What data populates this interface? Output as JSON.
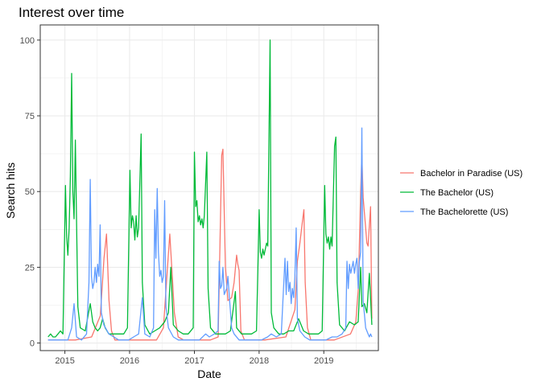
{
  "chart_data": {
    "type": "line",
    "title": "Interest over time",
    "xlabel": "Date",
    "ylabel": "Search hits",
    "xlim": [
      "2014-08-15",
      "2019-11-05"
    ],
    "ylim": [
      -2.5,
      105
    ],
    "x_ticks": [
      {
        "date": "2015-01-01",
        "label": "2015"
      },
      {
        "date": "2016-01-01",
        "label": "2016"
      },
      {
        "date": "2017-01-01",
        "label": "2017"
      },
      {
        "date": "2018-01-01",
        "label": "2018"
      },
      {
        "date": "2019-01-01",
        "label": "2019"
      }
    ],
    "y_ticks": [
      0,
      25,
      50,
      75,
      100
    ],
    "grid": true,
    "legend_position": "right",
    "series": [
      {
        "name": "Bachelor in Paradise (US)",
        "color": "#F8766D",
        "points": [
          [
            "2014-09-28",
            1
          ],
          [
            "2015-03-01",
            1
          ],
          [
            "2015-06-01",
            2
          ],
          [
            "2015-07-20",
            9
          ],
          [
            "2015-08-10",
            28
          ],
          [
            "2015-08-24",
            36
          ],
          [
            "2015-09-07",
            14
          ],
          [
            "2015-09-21",
            4
          ],
          [
            "2015-10-10",
            1
          ],
          [
            "2016-03-01",
            1
          ],
          [
            "2016-06-01",
            1
          ],
          [
            "2016-07-10",
            5
          ],
          [
            "2016-08-01",
            24
          ],
          [
            "2016-08-15",
            36
          ],
          [
            "2016-08-29",
            22
          ],
          [
            "2016-09-10",
            10
          ],
          [
            "2016-10-01",
            2
          ],
          [
            "2016-11-01",
            1
          ],
          [
            "2017-04-01",
            1
          ],
          [
            "2017-05-15",
            2
          ],
          [
            "2017-06-04",
            62
          ],
          [
            "2017-06-11",
            64
          ],
          [
            "2017-06-25",
            25
          ],
          [
            "2017-07-09",
            14
          ],
          [
            "2017-07-30",
            15
          ],
          [
            "2017-08-13",
            20
          ],
          [
            "2017-08-27",
            29
          ],
          [
            "2017-09-03",
            26
          ],
          [
            "2017-09-10",
            24
          ],
          [
            "2017-09-20",
            4
          ],
          [
            "2017-10-10",
            1
          ],
          [
            "2018-02-01",
            1
          ],
          [
            "2018-06-01",
            2
          ],
          [
            "2018-07-22",
            11
          ],
          [
            "2018-08-05",
            27
          ],
          [
            "2018-08-19",
            33
          ],
          [
            "2018-09-02",
            40
          ],
          [
            "2018-09-11",
            44
          ],
          [
            "2018-09-18",
            20
          ],
          [
            "2018-10-01",
            5
          ],
          [
            "2018-10-20",
            1
          ],
          [
            "2019-03-01",
            1
          ],
          [
            "2019-06-01",
            3
          ],
          [
            "2019-07-01",
            7
          ],
          [
            "2019-07-15",
            18
          ],
          [
            "2019-07-28",
            50
          ],
          [
            "2019-08-04",
            62
          ],
          [
            "2019-08-11",
            48
          ],
          [
            "2019-08-25",
            38
          ],
          [
            "2019-09-01",
            33
          ],
          [
            "2019-09-08",
            32
          ],
          [
            "2019-09-22",
            45
          ],
          [
            "2019-09-29",
            8
          ]
        ]
      },
      {
        "name": "The Bachelor (US)",
        "color": "#00BA38",
        "points": [
          [
            "2014-09-28",
            2
          ],
          [
            "2014-10-12",
            3
          ],
          [
            "2014-10-26",
            2
          ],
          [
            "2014-11-09",
            2
          ],
          [
            "2014-11-23",
            3
          ],
          [
            "2014-12-07",
            4
          ],
          [
            "2014-12-21",
            3
          ],
          [
            "2015-01-04",
            52
          ],
          [
            "2015-01-11",
            35
          ],
          [
            "2015-01-18",
            29
          ],
          [
            "2015-01-25",
            38
          ],
          [
            "2015-02-01",
            55
          ],
          [
            "2015-02-08",
            89
          ],
          [
            "2015-02-15",
            50
          ],
          [
            "2015-02-22",
            41
          ],
          [
            "2015-03-01",
            67
          ],
          [
            "2015-03-08",
            40
          ],
          [
            "2015-03-15",
            12
          ],
          [
            "2015-03-29",
            5
          ],
          [
            "2015-04-26",
            4
          ],
          [
            "2015-05-24",
            13
          ],
          [
            "2015-06-07",
            7
          ],
          [
            "2015-06-21",
            5
          ],
          [
            "2015-07-05",
            4
          ],
          [
            "2015-07-19",
            5
          ],
          [
            "2015-08-02",
            8
          ],
          [
            "2015-08-16",
            5
          ],
          [
            "2015-09-06",
            3
          ],
          [
            "2015-10-04",
            3
          ],
          [
            "2015-11-01",
            3
          ],
          [
            "2015-11-29",
            3
          ],
          [
            "2015-12-20",
            5
          ],
          [
            "2016-01-03",
            57
          ],
          [
            "2016-01-10",
            38
          ],
          [
            "2016-01-17",
            42
          ],
          [
            "2016-01-24",
            40
          ],
          [
            "2016-01-31",
            34
          ],
          [
            "2016-02-07",
            42
          ],
          [
            "2016-02-14",
            35
          ],
          [
            "2016-02-21",
            38
          ],
          [
            "2016-03-06",
            69
          ],
          [
            "2016-03-13",
            20
          ],
          [
            "2016-03-27",
            6
          ],
          [
            "2016-04-24",
            3
          ],
          [
            "2016-05-22",
            4
          ],
          [
            "2016-06-19",
            5
          ],
          [
            "2016-07-17",
            7
          ],
          [
            "2016-08-07",
            10
          ],
          [
            "2016-08-21",
            25
          ],
          [
            "2016-09-04",
            6
          ],
          [
            "2016-10-02",
            4
          ],
          [
            "2016-10-30",
            3
          ],
          [
            "2016-11-27",
            3
          ],
          [
            "2016-12-25",
            5
          ],
          [
            "2017-01-01",
            63
          ],
          [
            "2017-01-08",
            45
          ],
          [
            "2017-01-15",
            47
          ],
          [
            "2017-01-22",
            40
          ],
          [
            "2017-01-29",
            42
          ],
          [
            "2017-02-05",
            39
          ],
          [
            "2017-02-12",
            41
          ],
          [
            "2017-02-19",
            38
          ],
          [
            "2017-02-26",
            42
          ],
          [
            "2017-03-12",
            63
          ],
          [
            "2017-03-19",
            18
          ],
          [
            "2017-04-02",
            5
          ],
          [
            "2017-04-30",
            3
          ],
          [
            "2017-05-28",
            3
          ],
          [
            "2017-06-25",
            3
          ],
          [
            "2017-07-23",
            4
          ],
          [
            "2017-08-20",
            17
          ],
          [
            "2017-08-27",
            5
          ],
          [
            "2017-09-24",
            3
          ],
          [
            "2017-10-22",
            3
          ],
          [
            "2017-11-19",
            3
          ],
          [
            "2017-12-17",
            4
          ],
          [
            "2018-01-01",
            44
          ],
          [
            "2018-01-08",
            30
          ],
          [
            "2018-01-15",
            28
          ],
          [
            "2018-01-22",
            31
          ],
          [
            "2018-01-29",
            29
          ],
          [
            "2018-02-05",
            31
          ],
          [
            "2018-02-12",
            33
          ],
          [
            "2018-02-19",
            32
          ],
          [
            "2018-03-04",
            100
          ],
          [
            "2018-03-11",
            10
          ],
          [
            "2018-03-25",
            5
          ],
          [
            "2018-04-22",
            3
          ],
          [
            "2018-05-20",
            3
          ],
          [
            "2018-06-17",
            4
          ],
          [
            "2018-07-15",
            4
          ],
          [
            "2018-08-12",
            8
          ],
          [
            "2018-09-09",
            4
          ],
          [
            "2018-10-07",
            3
          ],
          [
            "2018-11-04",
            3
          ],
          [
            "2018-12-02",
            3
          ],
          [
            "2018-12-23",
            4
          ],
          [
            "2019-01-06",
            52
          ],
          [
            "2019-01-13",
            36
          ],
          [
            "2019-01-20",
            33
          ],
          [
            "2019-01-27",
            35
          ],
          [
            "2019-02-03",
            31
          ],
          [
            "2019-02-10",
            35
          ],
          [
            "2019-02-17",
            32
          ],
          [
            "2019-03-03",
            65
          ],
          [
            "2019-03-10",
            68
          ],
          [
            "2019-03-17",
            20
          ],
          [
            "2019-03-31",
            6
          ],
          [
            "2019-04-28",
            4
          ],
          [
            "2019-05-26",
            7
          ],
          [
            "2019-06-23",
            6
          ],
          [
            "2019-07-14",
            7
          ],
          [
            "2019-07-28",
            25
          ],
          [
            "2019-08-04",
            12
          ],
          [
            "2019-08-18",
            13
          ],
          [
            "2019-09-01",
            10
          ],
          [
            "2019-09-15",
            23
          ],
          [
            "2019-09-29",
            6
          ]
        ]
      },
      {
        "name": "The Bachelorette (US)",
        "color": "#619CFF",
        "points": [
          [
            "2014-09-28",
            1
          ],
          [
            "2014-11-09",
            1
          ],
          [
            "2014-12-21",
            1
          ],
          [
            "2015-01-18",
            1
          ],
          [
            "2015-02-08",
            5
          ],
          [
            "2015-02-22",
            13
          ],
          [
            "2015-03-08",
            2
          ],
          [
            "2015-04-05",
            1
          ],
          [
            "2015-05-03",
            3
          ],
          [
            "2015-05-17",
            20
          ],
          [
            "2015-05-24",
            54
          ],
          [
            "2015-05-31",
            22
          ],
          [
            "2015-06-07",
            18
          ],
          [
            "2015-06-14",
            20
          ],
          [
            "2015-06-21",
            25
          ],
          [
            "2015-06-28",
            20
          ],
          [
            "2015-07-05",
            26
          ],
          [
            "2015-07-12",
            22
          ],
          [
            "2015-07-19",
            39
          ],
          [
            "2015-07-26",
            10
          ],
          [
            "2015-08-09",
            6
          ],
          [
            "2015-09-06",
            3
          ],
          [
            "2015-10-04",
            2
          ],
          [
            "2015-11-01",
            1
          ],
          [
            "2015-11-29",
            1
          ],
          [
            "2015-12-27",
            1
          ],
          [
            "2016-01-24",
            2
          ],
          [
            "2016-02-21",
            3
          ],
          [
            "2016-03-13",
            15
          ],
          [
            "2016-03-27",
            3
          ],
          [
            "2016-04-24",
            2
          ],
          [
            "2016-05-15",
            5
          ],
          [
            "2016-05-22",
            44
          ],
          [
            "2016-05-29",
            28
          ],
          [
            "2016-06-05",
            51
          ],
          [
            "2016-06-12",
            30
          ],
          [
            "2016-06-19",
            22
          ],
          [
            "2016-06-26",
            24
          ],
          [
            "2016-07-03",
            20
          ],
          [
            "2016-07-10",
            22
          ],
          [
            "2016-07-17",
            47
          ],
          [
            "2016-07-24",
            12
          ],
          [
            "2016-08-07",
            5
          ],
          [
            "2016-09-04",
            2
          ],
          [
            "2016-10-02",
            1
          ],
          [
            "2016-11-13",
            1
          ],
          [
            "2016-12-25",
            1
          ],
          [
            "2017-01-29",
            1
          ],
          [
            "2017-03-05",
            3
          ],
          [
            "2017-03-26",
            2
          ],
          [
            "2017-04-23",
            3
          ],
          [
            "2017-05-14",
            4
          ],
          [
            "2017-05-21",
            27
          ],
          [
            "2017-05-28",
            18
          ],
          [
            "2017-06-04",
            19
          ],
          [
            "2017-06-11",
            25
          ],
          [
            "2017-06-18",
            16
          ],
          [
            "2017-06-25",
            17
          ],
          [
            "2017-07-02",
            18
          ],
          [
            "2017-07-09",
            22
          ],
          [
            "2017-07-16",
            16
          ],
          [
            "2017-07-30",
            5
          ],
          [
            "2017-08-13",
            3
          ],
          [
            "2017-09-10",
            1
          ],
          [
            "2017-10-22",
            1
          ],
          [
            "2017-12-03",
            1
          ],
          [
            "2018-01-14",
            1
          ],
          [
            "2018-02-18",
            2
          ],
          [
            "2018-03-11",
            3
          ],
          [
            "2018-04-08",
            2
          ],
          [
            "2018-05-06",
            3
          ],
          [
            "2018-05-27",
            28
          ],
          [
            "2018-06-03",
            16
          ],
          [
            "2018-06-10",
            27
          ],
          [
            "2018-06-17",
            17
          ],
          [
            "2018-06-24",
            20
          ],
          [
            "2018-07-01",
            13
          ],
          [
            "2018-07-08",
            18
          ],
          [
            "2018-07-15",
            15
          ],
          [
            "2018-07-22",
            22
          ],
          [
            "2018-07-29",
            38
          ],
          [
            "2018-08-05",
            8
          ],
          [
            "2018-08-19",
            4
          ],
          [
            "2018-09-16",
            2
          ],
          [
            "2018-10-14",
            1
          ],
          [
            "2018-12-02",
            1
          ],
          [
            "2019-01-13",
            1
          ],
          [
            "2019-02-17",
            2
          ],
          [
            "2019-03-17",
            2
          ],
          [
            "2019-04-14",
            3
          ],
          [
            "2019-05-05",
            5
          ],
          [
            "2019-05-12",
            27
          ],
          [
            "2019-05-19",
            18
          ],
          [
            "2019-05-26",
            26
          ],
          [
            "2019-06-02",
            23
          ],
          [
            "2019-06-09",
            25
          ],
          [
            "2019-06-16",
            27
          ],
          [
            "2019-06-23",
            23
          ],
          [
            "2019-06-30",
            26
          ],
          [
            "2019-07-07",
            28
          ],
          [
            "2019-07-14",
            18
          ],
          [
            "2019-07-21",
            27
          ],
          [
            "2019-07-28",
            30
          ],
          [
            "2019-08-04",
            71
          ],
          [
            "2019-08-11",
            14
          ],
          [
            "2019-08-25",
            5
          ],
          [
            "2019-09-08",
            3
          ],
          [
            "2019-09-15",
            2
          ],
          [
            "2019-09-22",
            3
          ],
          [
            "2019-09-29",
            2
          ]
        ]
      }
    ]
  }
}
